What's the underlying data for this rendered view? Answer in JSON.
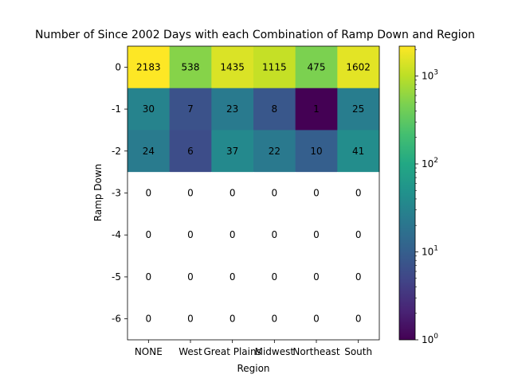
{
  "chart_data": {
    "type": "heatmap",
    "title": "Number of Since 2002 Days with each Combination of Ramp Down and Region",
    "xlabel": "Region",
    "ylabel": "Ramp Down",
    "x_categories": [
      "NONE",
      "West",
      "Great Plains",
      "Midwest",
      "Northeast",
      "South"
    ],
    "y_categories": [
      "0",
      "-1",
      "-2",
      "-3",
      "-4",
      "-5",
      "-6"
    ],
    "values": [
      [
        2183,
        538,
        1435,
        1115,
        475,
        1602
      ],
      [
        30,
        7,
        23,
        8,
        1,
        25
      ],
      [
        24,
        6,
        37,
        22,
        10,
        41
      ],
      [
        0,
        0,
        0,
        0,
        0,
        0
      ],
      [
        0,
        0,
        0,
        0,
        0,
        0
      ],
      [
        0,
        0,
        0,
        0,
        0,
        0
      ],
      [
        0,
        0,
        0,
        0,
        0,
        0
      ]
    ],
    "colorbar": {
      "scale": "log",
      "range": [
        1,
        2183
      ],
      "colormap": "viridis",
      "tick_labels": [
        "10^0",
        "10^1",
        "10^2",
        "10^3"
      ],
      "tick_values": [
        1,
        10,
        100,
        1000
      ]
    },
    "zero_cell_color": "#ffffff"
  }
}
